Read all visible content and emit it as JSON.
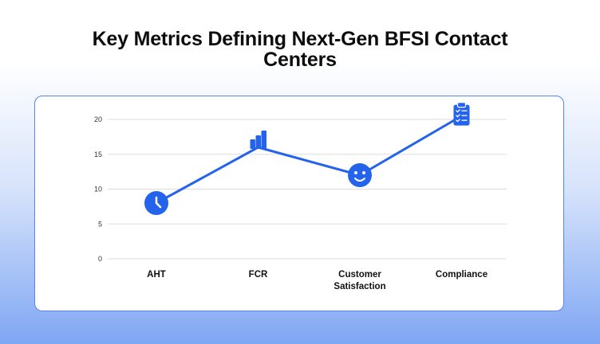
{
  "page": {
    "title_line1": "Key Metrics Defining Next-Gen BFSI Contact",
    "title_line2": "Centers"
  },
  "chart_data": {
    "type": "line",
    "categories": [
      "AHT",
      "FCR",
      "Customer Satisfaction",
      "Compliance"
    ],
    "category_lines": [
      [
        "AHT"
      ],
      [
        "FCR"
      ],
      [
        "Customer",
        "Satisfaction"
      ],
      [
        "Compliance"
      ]
    ],
    "values": [
      8,
      16,
      12,
      20.5
    ],
    "yticks": [
      0,
      5,
      10,
      15,
      20
    ],
    "ylim": [
      0,
      20.5
    ],
    "grid": true,
    "markers": [
      "clock-icon",
      "bar-chart-icon",
      "smiley-icon",
      "clipboard-icon"
    ],
    "colors": {
      "line": "#2463eb",
      "grid": "#dddddd"
    }
  }
}
